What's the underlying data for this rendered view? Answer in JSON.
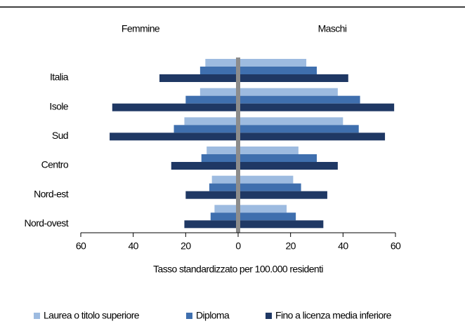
{
  "chart_data": {
    "type": "pyramid",
    "left_title": "Femmine",
    "right_title": "Maschi",
    "x_axis_label": "Tasso standardizzato per 100.000 residenti",
    "categories": [
      "Italia",
      "Isole",
      "Sud",
      "Centro",
      "Nord-est",
      "Nord-ovest"
    ],
    "series": [
      {
        "name": "Laurea o titolo superiore",
        "color": "#9dbbe0",
        "left": [
          12.5,
          14.5,
          20.5,
          12,
          10,
          9
        ],
        "right": [
          26,
          38,
          40,
          23,
          21,
          18.5
        ]
      },
      {
        "name": "Diploma",
        "color": "#3f6fae",
        "left": [
          14.5,
          20,
          24.5,
          14,
          11,
          10.5
        ],
        "right": [
          30,
          46.5,
          46,
          30,
          24,
          22
        ]
      },
      {
        "name": "Fino a licenza media inferiore",
        "color": "#1f3864",
        "left": [
          30,
          48,
          49,
          25.5,
          20,
          20.5
        ],
        "right": [
          42,
          59.5,
          56,
          38,
          34,
          32.5
        ]
      }
    ],
    "xlim": [
      0,
      60
    ],
    "xticks": [
      0,
      20,
      40,
      60
    ],
    "center_bar_color": "#8c8c8c"
  }
}
